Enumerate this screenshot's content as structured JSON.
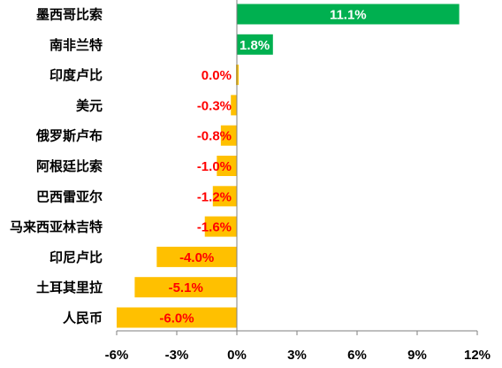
{
  "chart_data": {
    "type": "bar",
    "orientation": "horizontal",
    "categories": [
      "墨西哥比索",
      "南非兰特",
      "印度卢比",
      "美元",
      "俄罗斯卢布",
      "阿根廷比索",
      "巴西雷亚尔",
      "马来西亚林吉特",
      "印尼卢比",
      "土耳其里拉",
      "人民币"
    ],
    "values": [
      11.1,
      1.8,
      0.0,
      -0.3,
      -0.8,
      -1.0,
      -1.2,
      -1.6,
      -4.0,
      -5.1,
      -6.0
    ],
    "data_labels": [
      "11.1%",
      "1.8%",
      "0.0%",
      "-0.3%",
      "-0.8%",
      "-1.0%",
      "-1.2%",
      "-1.6%",
      "-4.0%",
      "-5.1%",
      "-6.0%"
    ],
    "x_ticks": [
      -6,
      -3,
      0,
      3,
      6,
      9,
      12
    ],
    "x_tick_labels": [
      "-6%",
      "-3%",
      "0%",
      "3%",
      "6%",
      "9%",
      "12%"
    ],
    "xlim": [
      -6,
      12
    ],
    "title": "",
    "xlabel": "",
    "ylabel": "",
    "grid": false,
    "legend": "none",
    "colors": {
      "positive_bar": "#00B050",
      "negative_bar": "#FFC000",
      "positive_label": "#FFFFFF",
      "negative_label": "#FF0000",
      "axis": "#7F7F7F"
    }
  }
}
